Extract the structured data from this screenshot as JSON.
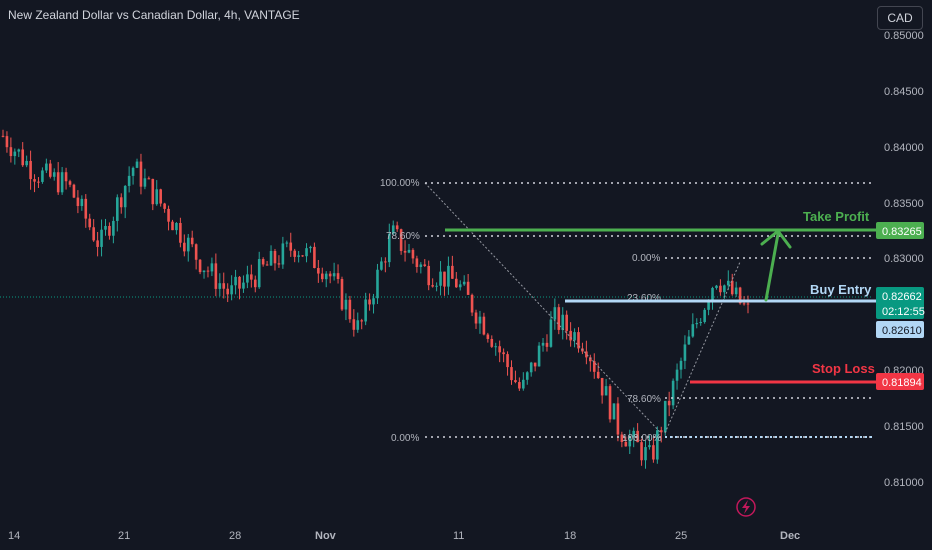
{
  "header": {
    "title": "New Zealand Dollar vs Canadian Dollar, 4h, VANTAGE",
    "currency": "CAD"
  },
  "price_axis": {
    "labels": [
      "0.85000",
      "0.84500",
      "0.84000",
      "0.83500",
      "0.83000",
      "0.82500",
      "0.82000",
      "0.81500",
      "0.81000"
    ]
  },
  "time_axis": {
    "labels": [
      "14",
      "21",
      "28",
      "Nov",
      "11",
      "18",
      "25",
      "Dec"
    ]
  },
  "fib_upper": {
    "levels": [
      "100.00%",
      "78.60%",
      "0.00%"
    ]
  },
  "fib_lower": {
    "levels": [
      "0.00%",
      "23.60%",
      "78.60%",
      "100.00%"
    ]
  },
  "annotations": {
    "take_profit": {
      "label": "Take Profit",
      "price": "0.83265",
      "color": "#4caf50"
    },
    "buy_entry": {
      "label": "Buy Entry",
      "price": "0.82610",
      "color": "#b2d7f5"
    },
    "stop_loss": {
      "label": "Stop Loss",
      "price": "0.81894",
      "color": "#f23645"
    }
  },
  "last_price": {
    "price": "0.82662",
    "countdown": "02:12:55",
    "color": "#089981"
  },
  "colors": {
    "up": "#26a69a",
    "down": "#ef5350",
    "background": "#131722"
  },
  "chart_data": {
    "type": "candlestick",
    "symbol": "NZDCAD",
    "timeframe": "4h",
    "ylim": [
      0.8095,
      0.8505
    ],
    "x_ticks": [
      "14",
      "21",
      "28",
      "Nov",
      "11",
      "18",
      "25",
      "Dec"
    ],
    "anchors": [
      {
        "x": "Oct 9",
        "close": 0.841
      },
      {
        "x": "Oct 12",
        "close": 0.838
      },
      {
        "x": "Oct 14",
        "close": 0.837
      },
      {
        "x": "Oct 16",
        "close": 0.832
      },
      {
        "x": "Oct 18",
        "close": 0.8385
      },
      {
        "x": "Oct 21",
        "close": 0.835
      },
      {
        "x": "Oct 23",
        "close": 0.831
      },
      {
        "x": "Oct 25",
        "close": 0.828
      },
      {
        "x": "Oct 28",
        "close": 0.83
      },
      {
        "x": "Oct 31",
        "close": 0.832
      },
      {
        "x": "Nov 1",
        "close": 0.83
      },
      {
        "x": "Nov 4",
        "close": 0.825
      },
      {
        "x": "Nov 6",
        "close": 0.833
      },
      {
        "x": "Nov 8",
        "close": 0.83
      },
      {
        "x": "Nov 11",
        "close": 0.829
      },
      {
        "x": "Nov 13",
        "close": 0.825
      },
      {
        "x": "Nov 15",
        "close": 0.82
      },
      {
        "x": "Nov 18",
        "close": 0.826
      },
      {
        "x": "Nov 20",
        "close": 0.824
      },
      {
        "x": "Nov 22",
        "close": 0.817
      },
      {
        "x": "Nov 24",
        "close": 0.8145
      },
      {
        "x": "Nov 26",
        "close": 0.823
      },
      {
        "x": "Nov 27",
        "close": 0.8295
      },
      {
        "x": "Nov 28",
        "close": 0.8266
      }
    ]
  }
}
